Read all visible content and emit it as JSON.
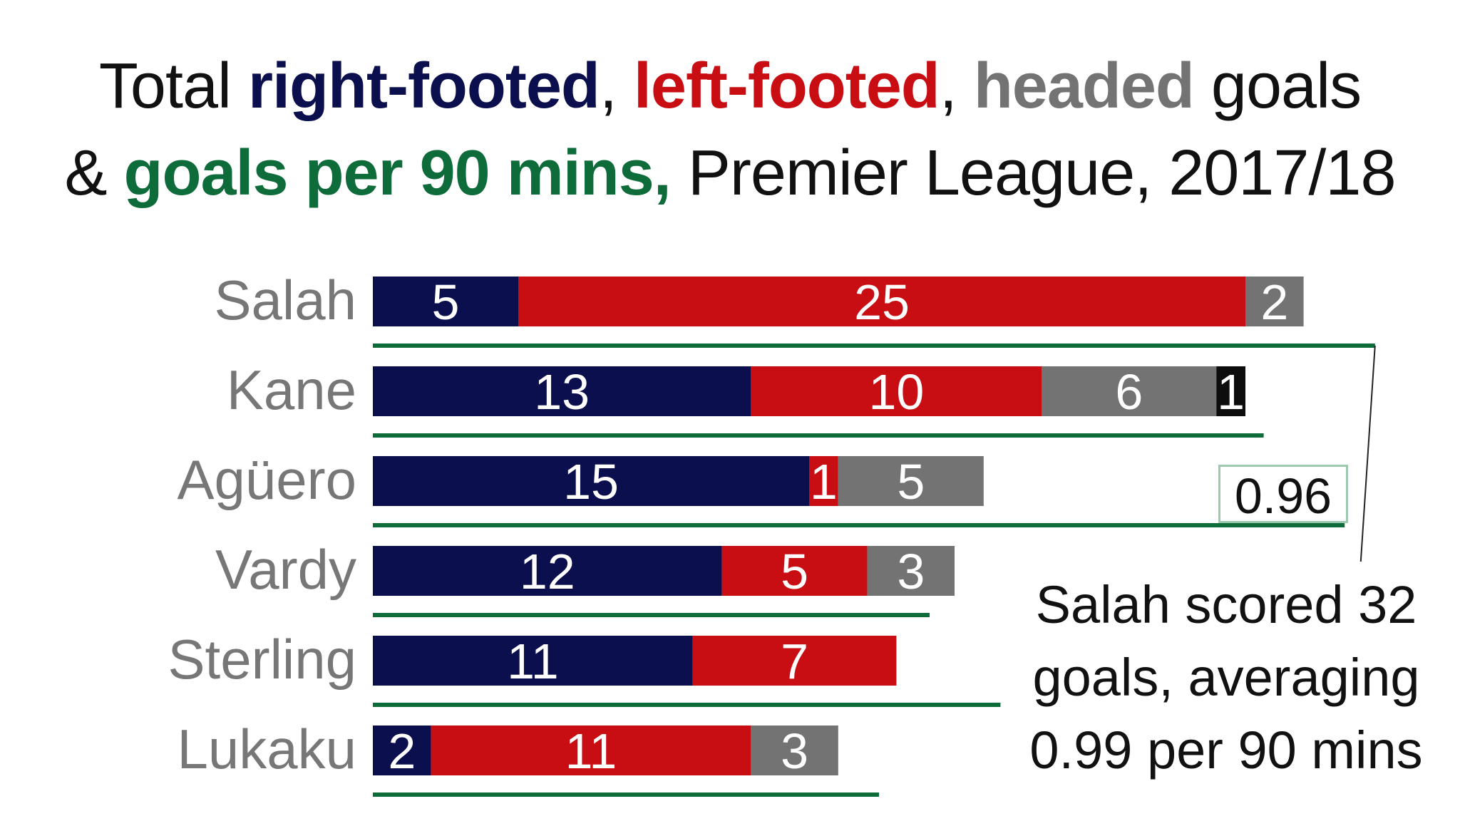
{
  "title": {
    "part1": "Total ",
    "right_footed": "right-footed",
    "sep1": ", ",
    "left_footed": "left-footed",
    "sep2": ", ",
    "headed": "headed",
    "part2": " goals",
    "part3": "& ",
    "per90": "goals per 90 mins,",
    "part4": " Premier League, 2017/18"
  },
  "colors": {
    "right_footed": "#0c0f4d",
    "left_footed": "#c90e13",
    "headed": "#737373",
    "other": "#0d0d0d",
    "per90": "#0e6b3a"
  },
  "annotation": {
    "callout_value": "0.96",
    "text_line1": "Salah scored 32",
    "text_line2": "goals, averaging",
    "text_line3": "0.99 per 90 mins"
  },
  "chart_data": {
    "type": "bar",
    "orientation": "horizontal",
    "stacked": true,
    "categories": [
      "Salah",
      "Kane",
      "Agüero",
      "Vardy",
      "Sterling",
      "Lukaku"
    ],
    "series": [
      {
        "name": "right-footed",
        "values": [
          5,
          13,
          15,
          12,
          11,
          2
        ]
      },
      {
        "name": "left-footed",
        "values": [
          25,
          10,
          1,
          5,
          7,
          11
        ]
      },
      {
        "name": "headed",
        "values": [
          2,
          6,
          5,
          3,
          0,
          3
        ]
      },
      {
        "values": [
          0,
          1,
          0,
          0,
          0,
          0
        ]
      }
    ],
    "goals_per_90": [
      0.99,
      0.88,
      0.96,
      0.55,
      0.62,
      0.5
    ],
    "xlim": [
      0,
      32
    ]
  }
}
